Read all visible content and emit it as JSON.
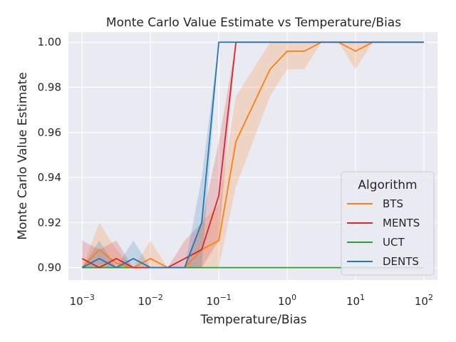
{
  "chart_data": {
    "type": "line",
    "title": "Monte Carlo Value Estimate vs Temperature/Bias",
    "xlabel": "Temperature/Bias",
    "ylabel": "Monte Carlo Value Estimate",
    "xscale": "log",
    "xlim": [
      0.00063,
      158
    ],
    "ylim": [
      0.8945,
      1.0045
    ],
    "xticks": [
      0.001,
      0.01,
      0.1,
      1,
      10,
      100
    ],
    "xtick_labels": [
      {
        "base": "10",
        "exp": "−3"
      },
      {
        "base": "10",
        "exp": "−2"
      },
      {
        "base": "10",
        "exp": "−1"
      },
      {
        "base": "10",
        "exp": "0"
      },
      {
        "base": "10",
        "exp": "1"
      },
      {
        "base": "10",
        "exp": "2"
      }
    ],
    "yticks": [
      0.9,
      0.92,
      0.94,
      0.96,
      0.98,
      1.0
    ],
    "ytick_labels": [
      "0.90",
      "0.92",
      "0.94",
      "0.96",
      "0.98",
      "1.00"
    ],
    "grid": true,
    "legend": {
      "title": "Algorithm",
      "placement": "lower-right"
    },
    "x": [
      0.001,
      0.00178,
      0.00316,
      0.00562,
      0.01,
      0.0178,
      0.0316,
      0.0562,
      0.1,
      0.178,
      0.316,
      0.562,
      1,
      1.78,
      3.16,
      5.62,
      10,
      17.8,
      31.6,
      56.2,
      100
    ],
    "series": [
      {
        "name": "BTS",
        "color": "#ff7f0e",
        "values": [
          0.9,
          0.908,
          0.902,
          0.9,
          0.904,
          0.9,
          0.9,
          0.908,
          0.912,
          0.956,
          0.972,
          0.988,
          0.996,
          0.996,
          1.0,
          1.0,
          0.996,
          1.0,
          1.0,
          1.0,
          1.0
        ],
        "lower": [
          0.9,
          0.9,
          0.9,
          0.9,
          0.9,
          0.9,
          0.9,
          0.9,
          0.9,
          0.936,
          0.956,
          0.976,
          0.988,
          0.988,
          1.0,
          1.0,
          0.988,
          1.0,
          1.0,
          1.0,
          1.0
        ],
        "upper": [
          0.9,
          0.92,
          0.908,
          0.9,
          0.912,
          0.9,
          0.9,
          0.92,
          0.928,
          0.976,
          0.988,
          1.0,
          1.0,
          1.0,
          1.0,
          1.0,
          1.0,
          1.0,
          1.0,
          1.0,
          1.0
        ]
      },
      {
        "name": "MENTS",
        "color": "#d62728",
        "values": [
          0.904,
          0.9,
          0.904,
          0.9,
          0.9,
          0.9,
          0.904,
          0.908,
          0.932,
          1.0,
          1.0,
          1.0,
          1.0,
          1.0,
          1.0,
          1.0,
          1.0,
          1.0,
          1.0,
          1.0,
          1.0
        ],
        "lower": [
          0.9,
          0.9,
          0.9,
          0.9,
          0.9,
          0.9,
          0.9,
          0.9,
          0.912,
          1.0,
          1.0,
          1.0,
          1.0,
          1.0,
          1.0,
          1.0,
          1.0,
          1.0,
          1.0,
          1.0,
          1.0
        ],
        "upper": [
          0.912,
          0.908,
          0.912,
          0.9,
          0.9,
          0.9,
          0.912,
          0.92,
          0.956,
          1.0,
          1.0,
          1.0,
          1.0,
          1.0,
          1.0,
          1.0,
          1.0,
          1.0,
          1.0,
          1.0,
          1.0
        ]
      },
      {
        "name": "UCT",
        "color": "#2ca02c",
        "values": [
          0.9,
          0.9,
          0.9,
          0.9,
          0.9,
          0.9,
          0.9,
          0.9,
          0.9,
          0.9,
          0.9,
          0.9,
          0.9,
          0.9,
          0.9,
          0.9,
          0.9,
          0.9,
          0.9,
          0.9,
          0.9
        ],
        "lower": [
          0.9,
          0.9,
          0.9,
          0.9,
          0.9,
          0.9,
          0.9,
          0.9,
          0.9,
          0.9,
          0.9,
          0.9,
          0.9,
          0.9,
          0.9,
          0.9,
          0.9,
          0.9,
          0.9,
          0.9,
          0.9
        ],
        "upper": [
          0.9,
          0.9,
          0.9,
          0.9,
          0.9,
          0.9,
          0.9,
          0.9,
          0.9,
          0.9,
          0.9,
          0.9,
          0.9,
          0.9,
          0.9,
          0.9,
          0.9,
          0.9,
          0.9,
          0.9,
          0.9
        ]
      },
      {
        "name": "DENTS",
        "color": "#1f77b4",
        "values": [
          0.9,
          0.904,
          0.9,
          0.904,
          0.9,
          0.9,
          0.9,
          0.92,
          1.0,
          1.0,
          1.0,
          1.0,
          1.0,
          1.0,
          1.0,
          1.0,
          1.0,
          1.0,
          1.0,
          1.0,
          1.0
        ],
        "lower": [
          0.9,
          0.9,
          0.9,
          0.9,
          0.9,
          0.9,
          0.9,
          0.9,
          1.0,
          1.0,
          1.0,
          1.0,
          1.0,
          1.0,
          1.0,
          1.0,
          1.0,
          1.0,
          1.0,
          1.0,
          1.0
        ],
        "upper": [
          0.9,
          0.912,
          0.9,
          0.912,
          0.9,
          0.9,
          0.9,
          0.94,
          1.0,
          1.0,
          1.0,
          1.0,
          1.0,
          1.0,
          1.0,
          1.0,
          1.0,
          1.0,
          1.0,
          1.0,
          1.0
        ]
      }
    ],
    "colors": {
      "plot_background": "#eaeaf2",
      "grid": "#ffffff",
      "text": "#262626",
      "legend_background": "#eaeaf2",
      "legend_border": "#cccccc"
    }
  }
}
